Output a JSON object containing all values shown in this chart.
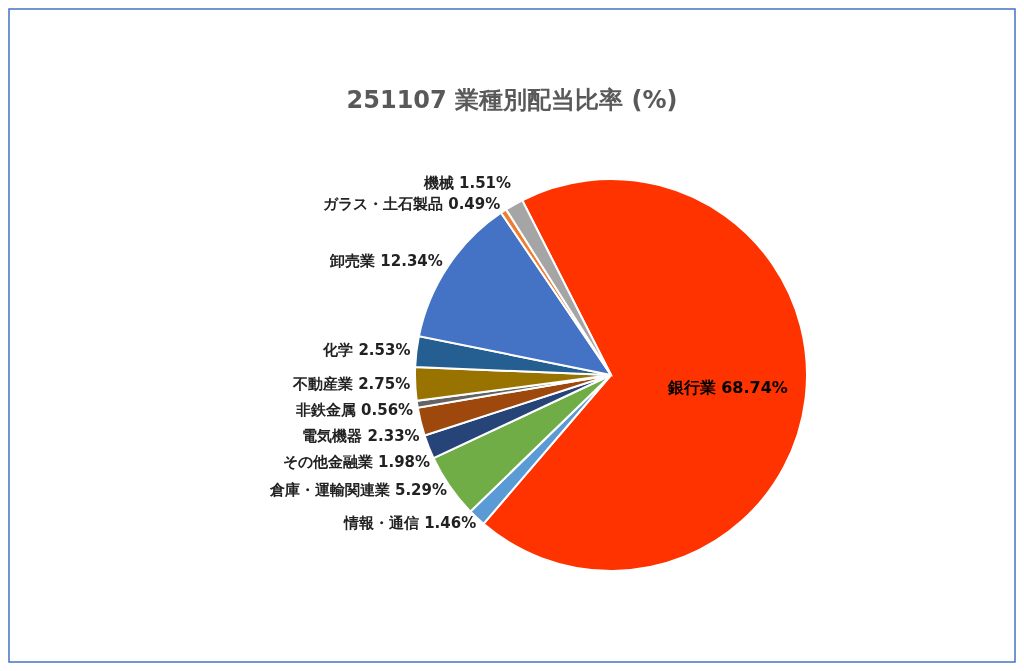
{
  "chart_data": {
    "type": "pie",
    "title": "251107 業種別配当比率 (%)",
    "categories": [
      "銀行業",
      "情報・通信",
      "倉庫・運輸関連業",
      "その他金融業",
      "電気機器",
      "非鉄金属",
      "不動産業",
      "化学",
      "卸売業",
      "ガラス・土石製品",
      "機械"
    ],
    "values": [
      68.74,
      1.46,
      5.29,
      1.98,
      2.33,
      0.56,
      2.75,
      2.53,
      12.34,
      0.49,
      1.51
    ],
    "value_labels": [
      "68.74%",
      "1.46%",
      "5.29%",
      "1.98%",
      "2.33%",
      "0.56%",
      "2.75%",
      "2.53%",
      "12.34%",
      "0.49%",
      "1.51%"
    ],
    "colors": [
      "#ff3300",
      "#5b9bd5",
      "#70ad47",
      "#264478",
      "#9e480e",
      "#636363",
      "#997300",
      "#255e91",
      "#4472c4",
      "#ed7d31",
      "#a5a5a5"
    ]
  }
}
